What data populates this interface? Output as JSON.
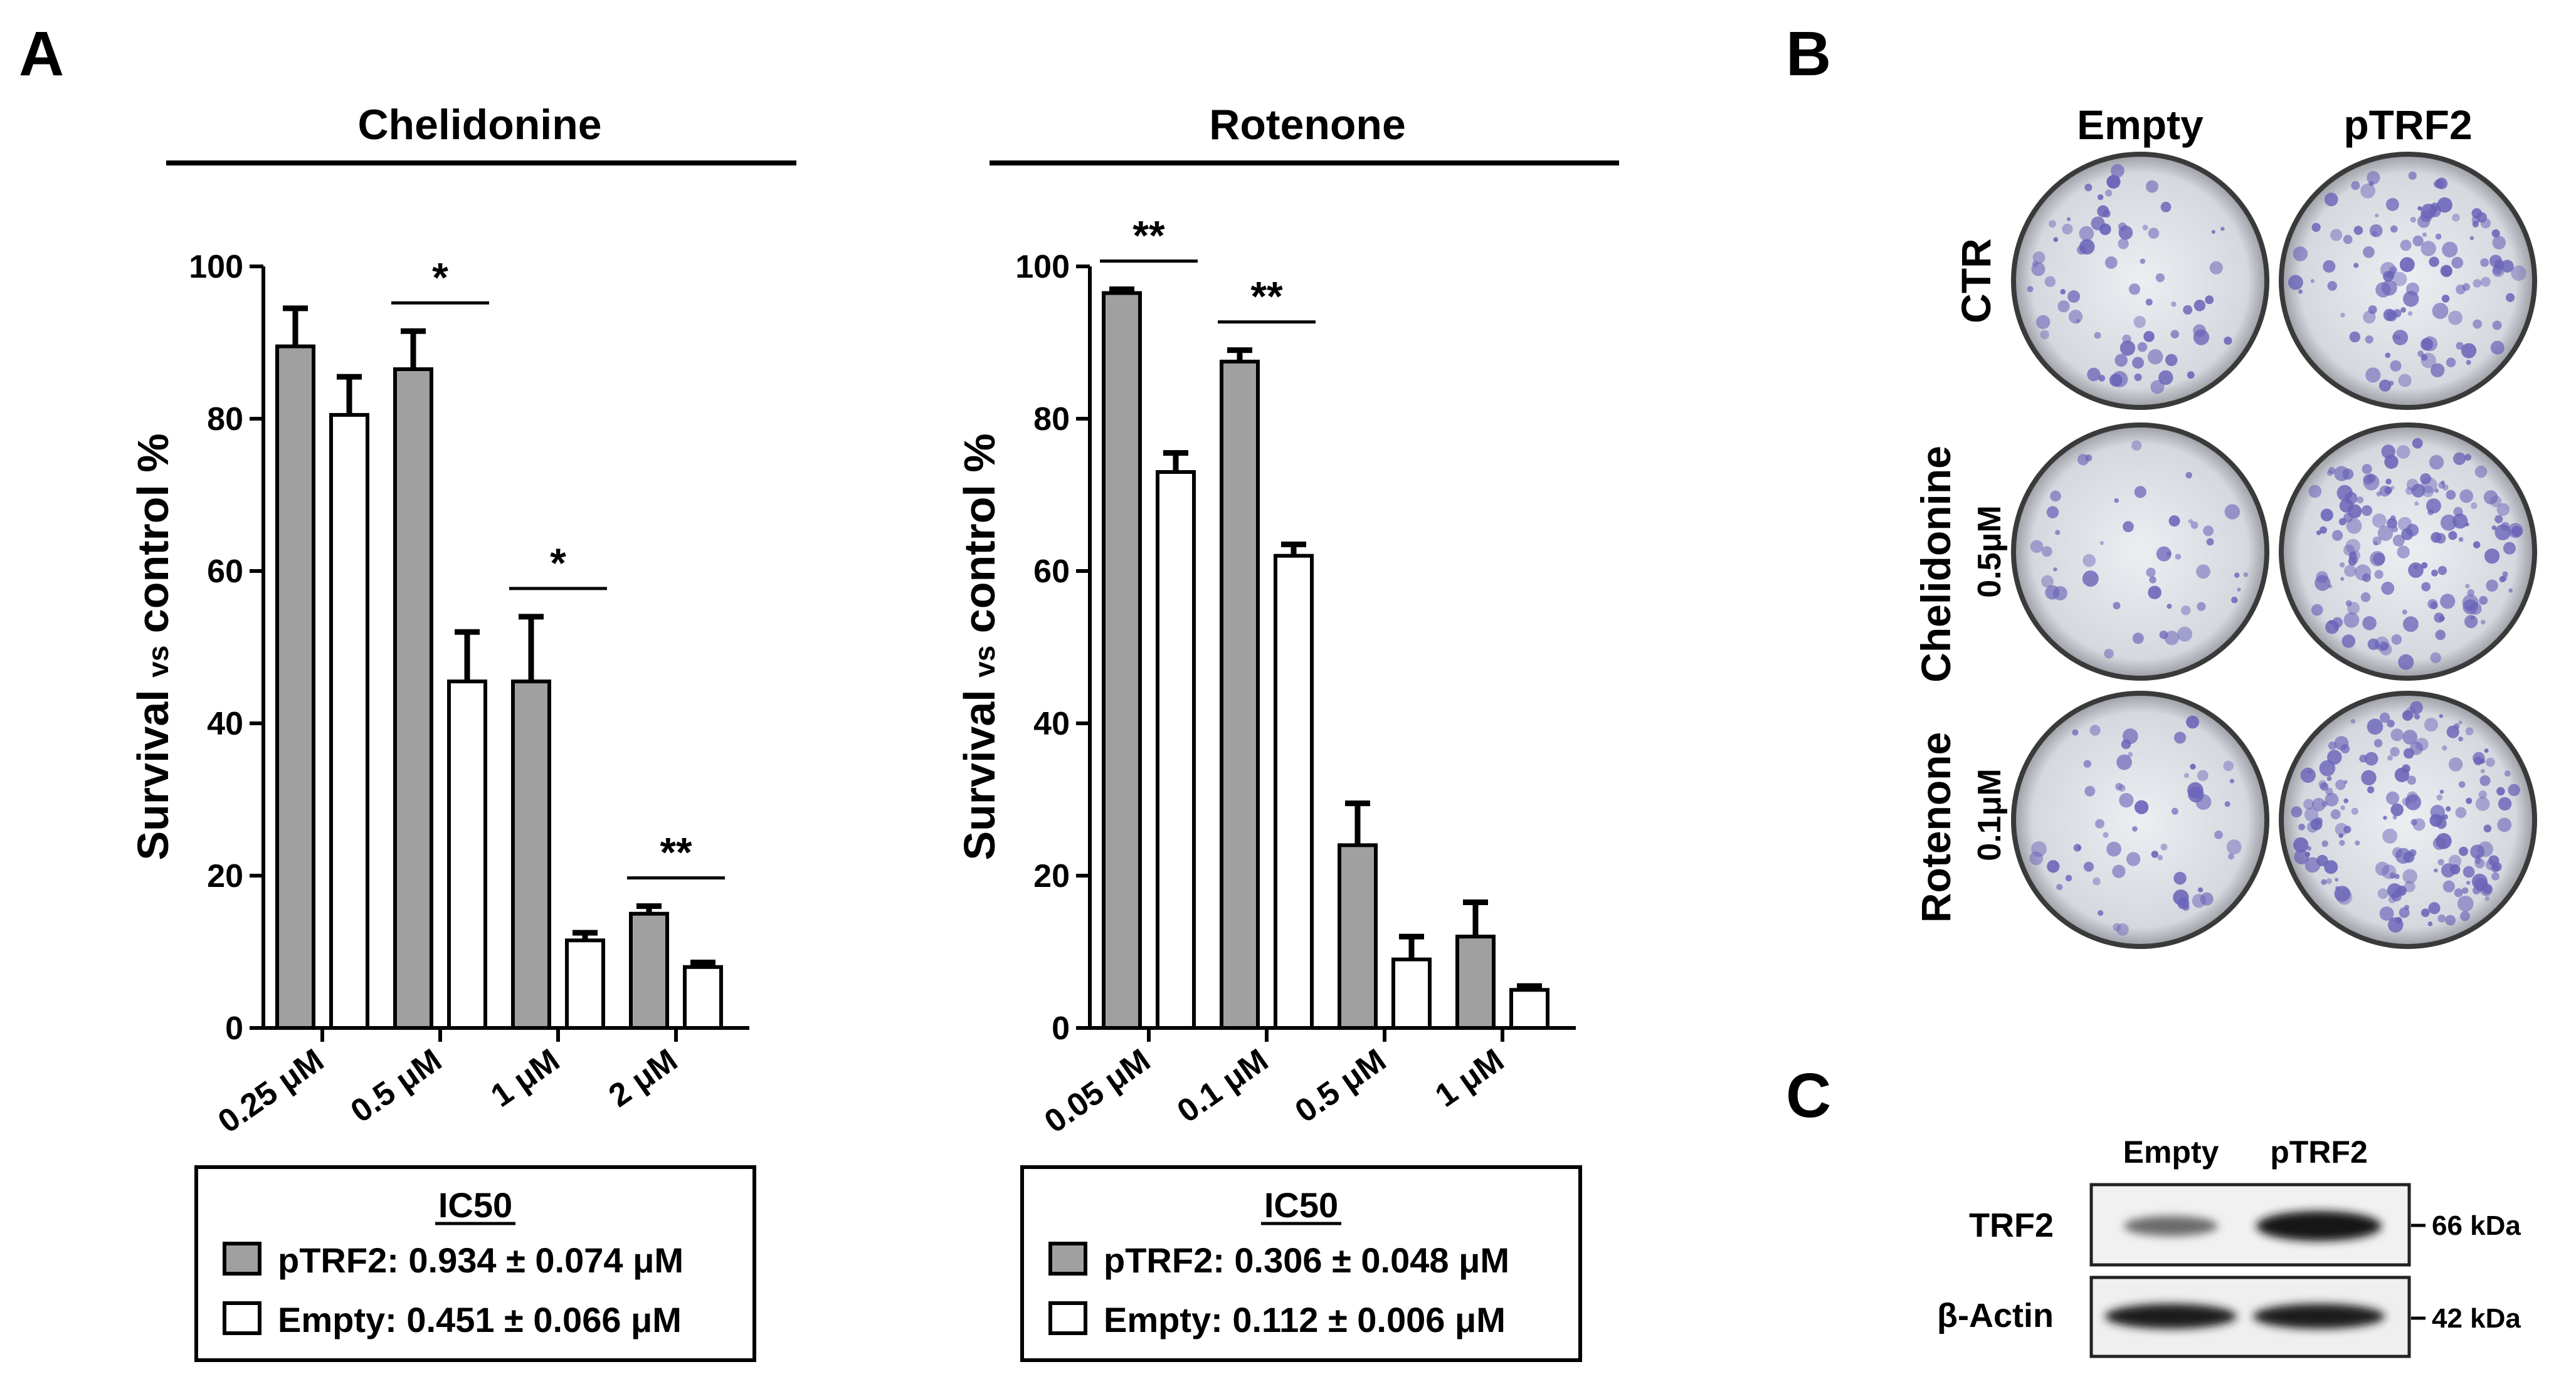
{
  "panels": {
    "a_label": "A",
    "b_label": "B",
    "c_label": "C"
  },
  "colors": {
    "ptrf2_bar": "#a0a0a0",
    "empty_bar": "#ffffff",
    "stain": "#6a63b8",
    "dish_bg": "#dcdde3"
  },
  "ylabel_parts": {
    "main1": "Survival ",
    "vs": "vs",
    "main2": " control %"
  },
  "chart_data": [
    {
      "type": "bar",
      "title": "Chelidonine",
      "categories": [
        "0.25 μM",
        "0.5 μM",
        "1 μM",
        "2 μM"
      ],
      "ylim": [
        0,
        100
      ],
      "yticks": [
        "0",
        "20",
        "40",
        "60",
        "80",
        "100"
      ],
      "series": [
        {
          "name": "pTRF2",
          "values": [
            89.5,
            86.5,
            45.5,
            15
          ],
          "errors": [
            5,
            5,
            8.5,
            1
          ]
        },
        {
          "name": "Empty",
          "values": [
            80.5,
            45.5,
            11.5,
            8
          ],
          "errors": [
            5,
            6.5,
            1,
            0.6
          ]
        }
      ],
      "significance": [
        {
          "category_index": 1,
          "label": "*"
        },
        {
          "category_index": 2,
          "label": "*"
        },
        {
          "category_index": 3,
          "label": "**"
        }
      ],
      "ic50": {
        "heading": "IC50",
        "rows": [
          {
            "series": "pTRF2",
            "text": "pTRF2: 0.934 ± 0.074 μM"
          },
          {
            "series": "Empty",
            "text": "Empty: 0.451 ± 0.066 μM"
          }
        ]
      }
    },
    {
      "type": "bar",
      "title": "Rotenone",
      "categories": [
        "0.05 μM",
        "0.1 μM",
        "0.5 μM",
        "1 μM"
      ],
      "ylim": [
        0,
        100
      ],
      "yticks": [
        "0",
        "20",
        "40",
        "60",
        "80",
        "100"
      ],
      "series": [
        {
          "name": "pTRF2",
          "values": [
            96.5,
            87.5,
            24,
            12
          ],
          "errors": [
            0.5,
            1.5,
            5.5,
            4.5
          ]
        },
        {
          "name": "Empty",
          "values": [
            73,
            62,
            9,
            5
          ],
          "errors": [
            2.5,
            1.5,
            3,
            0.5
          ]
        }
      ],
      "significance": [
        {
          "category_index": 0,
          "label": "**"
        },
        {
          "category_index": 1,
          "label": "**"
        }
      ],
      "ic50": {
        "heading": "IC50",
        "rows": [
          {
            "series": "pTRF2",
            "text": "pTRF2: 0.306 ± 0.048 μM"
          },
          {
            "series": "Empty",
            "text": "Empty: 0.112 ± 0.006 μM"
          }
        ]
      }
    }
  ],
  "panel_b": {
    "columns": [
      "Empty",
      "pTRF2"
    ],
    "rows": [
      {
        "name": "CTR",
        "dose": ""
      },
      {
        "name": "Chelidonine",
        "dose": "0.5μM"
      },
      {
        "name": "Rotenone",
        "dose": "0.1μM"
      }
    ]
  },
  "panel_c": {
    "lanes": [
      "Empty",
      "pTRF2"
    ],
    "blots": [
      {
        "protein": "TRF2",
        "marker": "66 kDa"
      },
      {
        "protein": "β-Actin",
        "marker": "42 kDa"
      }
    ]
  }
}
